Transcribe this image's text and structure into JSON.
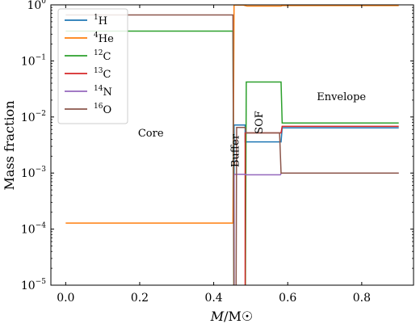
{
  "chart_data": {
    "type": "line",
    "xlabel": "M/M☉",
    "ylabel": "Mass fraction",
    "xlim": [
      -0.04,
      0.94
    ],
    "ylim_log10": [
      -5,
      0
    ],
    "y_scale": "log",
    "grid": false,
    "legend_position": "top-left",
    "x_ticks": [
      0.0,
      0.2,
      0.4,
      0.6,
      0.8
    ],
    "x_tick_labels": [
      "0.0",
      "0.2",
      "0.4",
      "0.6",
      "0.8"
    ],
    "y_ticks": [
      1,
      0.1,
      0.01,
      0.001,
      0.0001,
      1e-05
    ],
    "y_tick_labels": [
      "10^0",
      "10^-1",
      "10^-2",
      "10^-3",
      "10^-4",
      "10^-5"
    ],
    "annotations": [
      {
        "text": "Core",
        "x": 0.23,
        "y": 0.0045,
        "rotate": 0
      },
      {
        "text": "Buffer",
        "x": 0.468,
        "y": 0.0025,
        "rotate": -90
      },
      {
        "text": "SOF",
        "x": 0.532,
        "y": 0.008,
        "rotate": -90
      },
      {
        "text": "Envelope",
        "x": 0.745,
        "y": 0.02,
        "rotate": 0
      }
    ],
    "series": [
      {
        "name": "1H",
        "mass": "1",
        "element": "H",
        "color": "#1f77b4",
        "points": [
          [
            0.455,
            1e-06
          ],
          [
            0.455,
            0.0072
          ],
          [
            0.485,
            0.0072
          ],
          [
            0.485,
            0.0036
          ],
          [
            0.582,
            0.0036
          ],
          [
            0.585,
            0.0064
          ],
          [
            0.9,
            0.0064
          ]
        ]
      },
      {
        "name": "4He",
        "mass": "4",
        "element": "He",
        "color": "#ff7f0e",
        "points": [
          [
            0.0,
            0.000128
          ],
          [
            0.452,
            0.000128
          ],
          [
            0.455,
            0.99
          ],
          [
            0.48,
            0.99
          ],
          [
            0.49,
            0.95
          ],
          [
            0.582,
            0.95
          ],
          [
            0.585,
            0.97
          ],
          [
            0.9,
            0.97
          ]
        ]
      },
      {
        "name": "12C",
        "mass": "12",
        "element": "C",
        "color": "#2ca02c",
        "points": [
          [
            0.0,
            0.34
          ],
          [
            0.452,
            0.34
          ],
          [
            0.455,
            1e-06
          ],
          [
            0.485,
            1e-06
          ],
          [
            0.488,
            0.042
          ],
          [
            0.582,
            0.042
          ],
          [
            0.585,
            0.0078
          ],
          [
            0.9,
            0.0078
          ]
        ]
      },
      {
        "name": "13C",
        "mass": "13",
        "element": "C",
        "color": "#d62728",
        "points": [
          [
            0.485,
            1e-06
          ],
          [
            0.485,
            0.0052
          ],
          [
            0.582,
            0.0052
          ],
          [
            0.585,
            0.0068
          ],
          [
            0.9,
            0.0068
          ]
        ]
      },
      {
        "name": "14N",
        "mass": "14",
        "element": "N",
        "color": "#9467bd",
        "points": [
          [
            0.455,
            1e-06
          ],
          [
            0.455,
            0.00095
          ],
          [
            0.485,
            0.00095
          ],
          [
            0.488,
            0.00093
          ],
          [
            0.58,
            0.00093
          ],
          [
            0.583,
            0.001
          ],
          [
            0.9,
            0.001
          ]
        ]
      },
      {
        "name": "16O",
        "mass": "16",
        "element": "O",
        "color": "#8c564b",
        "points": [
          [
            0.0,
            0.66
          ],
          [
            0.452,
            0.66
          ],
          [
            0.455,
            1e-06
          ],
          [
            0.46,
            1e-06
          ],
          [
            0.462,
            0.0065
          ],
          [
            0.485,
            0.0065
          ],
          [
            0.488,
            0.0052
          ],
          [
            0.578,
            0.0052
          ],
          [
            0.582,
            0.001
          ],
          [
            0.9,
            0.001
          ]
        ]
      }
    ]
  }
}
